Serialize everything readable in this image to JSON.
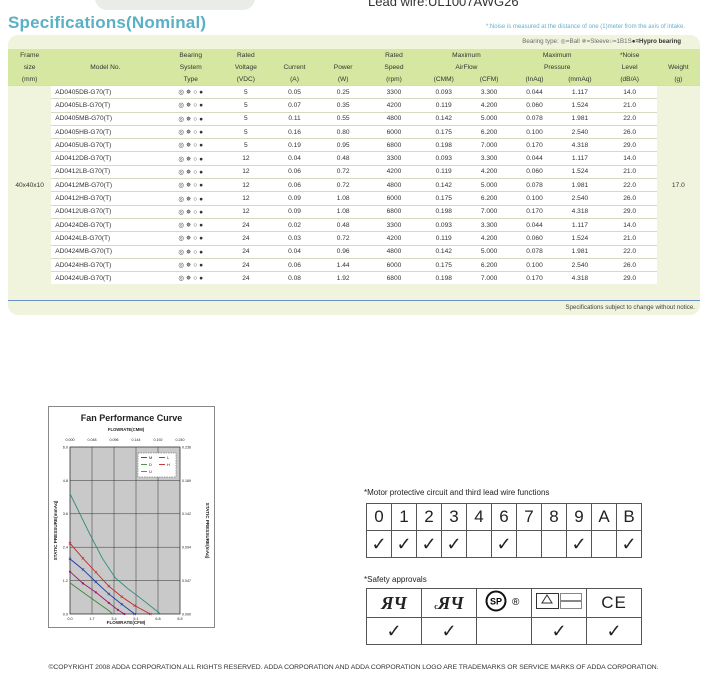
{
  "header": {
    "lead_wire": "Lead wire:UL1007AWG26",
    "title": "Specifications(Nominal)",
    "noise_note": "*:Noise is measured at the distance of one (1)meter from the axis of intake.",
    "bearing_legend_prefix": "Bearing type: ",
    "bearing_legend_body": "◎=Ball ✵=Sleeve○=1B1S",
    "bearing_legend_bold": "●=Hypro bearing"
  },
  "spec_table": {
    "headers_row1": [
      "Frame",
      "",
      "Bearing",
      "Rated",
      "",
      "",
      "Rated",
      "Maximum",
      "Maximum",
      "*Noise",
      ""
    ],
    "headers_row2": [
      "size",
      "Model No.",
      "System",
      "Voltage",
      "Current",
      "Power",
      "Speed",
      "AirFlow",
      "Pressure",
      "Level",
      "Weight"
    ],
    "headers_row3": [
      "(mm)",
      "",
      "Type",
      "(VDC)",
      "(A)",
      "(W)",
      "(rpm)",
      "(CMM)",
      "(CFM)",
      "(InAq)",
      "(mmAq)",
      "(dB/A)",
      "(g)"
    ],
    "frame_size": "40x40x10",
    "weight": "17.0",
    "bearing_symbols": "◎ ✵ ○ ●",
    "rows": [
      {
        "model": "AD0405DB-G70(T)",
        "voltage": "5",
        "current": "0.05",
        "power": "0.25",
        "speed": "3300",
        "cmm": "0.093",
        "cfm": "3.300",
        "inaq": "0.044",
        "mmaq": "1.117",
        "noise": "14.0"
      },
      {
        "model": "AD0405LB-G70(T)",
        "voltage": "5",
        "current": "0.07",
        "power": "0.35",
        "speed": "4200",
        "cmm": "0.119",
        "cfm": "4.200",
        "inaq": "0.060",
        "mmaq": "1.524",
        "noise": "21.0"
      },
      {
        "model": "AD0405MB-G70(T)",
        "voltage": "5",
        "current": "0.11",
        "power": "0.55",
        "speed": "4800",
        "cmm": "0.142",
        "cfm": "5.000",
        "inaq": "0.078",
        "mmaq": "1.981",
        "noise": "22.0"
      },
      {
        "model": "AD0405HB-G70(T)",
        "voltage": "5",
        "current": "0.16",
        "power": "0.80",
        "speed": "6000",
        "cmm": "0.175",
        "cfm": "6.200",
        "inaq": "0.100",
        "mmaq": "2.540",
        "noise": "26.0"
      },
      {
        "model": "AD0405UB-G70(T)",
        "voltage": "5",
        "current": "0.19",
        "power": "0.95",
        "speed": "6800",
        "cmm": "0.198",
        "cfm": "7.000",
        "inaq": "0.170",
        "mmaq": "4.318",
        "noise": "29.0"
      },
      {
        "model": "AD0412DB-G70(T)",
        "voltage": "12",
        "current": "0.04",
        "power": "0.48",
        "speed": "3300",
        "cmm": "0.093",
        "cfm": "3.300",
        "inaq": "0.044",
        "mmaq": "1.117",
        "noise": "14.0"
      },
      {
        "model": "AD0412LB-G70(T)",
        "voltage": "12",
        "current": "0.06",
        "power": "0.72",
        "speed": "4200",
        "cmm": "0.119",
        "cfm": "4.200",
        "inaq": "0.060",
        "mmaq": "1.524",
        "noise": "21.0"
      },
      {
        "model": "AD0412MB-G70(T)",
        "voltage": "12",
        "current": "0.06",
        "power": "0.72",
        "speed": "4800",
        "cmm": "0.142",
        "cfm": "5.000",
        "inaq": "0.078",
        "mmaq": "1.981",
        "noise": "22.0"
      },
      {
        "model": "AD0412HB-G70(T)",
        "voltage": "12",
        "current": "0.09",
        "power": "1.08",
        "speed": "6000",
        "cmm": "0.175",
        "cfm": "6.200",
        "inaq": "0.100",
        "mmaq": "2.540",
        "noise": "26.0"
      },
      {
        "model": "AD0412UB-G70(T)",
        "voltage": "12",
        "current": "0.09",
        "power": "1.08",
        "speed": "6800",
        "cmm": "0.198",
        "cfm": "7.000",
        "inaq": "0.170",
        "mmaq": "4.318",
        "noise": "29.0"
      },
      {
        "model": "AD0424DB-G70(T)",
        "voltage": "24",
        "current": "0.02",
        "power": "0.48",
        "speed": "3300",
        "cmm": "0.093",
        "cfm": "3.300",
        "inaq": "0.044",
        "mmaq": "1.117",
        "noise": "14.0"
      },
      {
        "model": "AD0424LB-G70(T)",
        "voltage": "24",
        "current": "0.03",
        "power": "0.72",
        "speed": "4200",
        "cmm": "0.119",
        "cfm": "4.200",
        "inaq": "0.060",
        "mmaq": "1.524",
        "noise": "21.0"
      },
      {
        "model": "AD0424MB-G70(T)",
        "voltage": "24",
        "current": "0.04",
        "power": "0.96",
        "speed": "4800",
        "cmm": "0.142",
        "cfm": "5.000",
        "inaq": "0.078",
        "mmaq": "1.981",
        "noise": "22.0"
      },
      {
        "model": "AD0424HB-G70(T)",
        "voltage": "24",
        "current": "0.06",
        "power": "1.44",
        "speed": "6000",
        "cmm": "0.175",
        "cfm": "6.200",
        "inaq": "0.100",
        "mmaq": "2.540",
        "noise": "26.0"
      },
      {
        "model": "AD0424UB-G70(T)",
        "voltage": "24",
        "current": "0.08",
        "power": "1.92",
        "speed": "6800",
        "cmm": "0.198",
        "cfm": "7.000",
        "inaq": "0.170",
        "mmaq": "4.318",
        "noise": "29.0"
      }
    ],
    "footnote": "Specifications subject to change without notice."
  },
  "chart_data": {
    "type": "line",
    "title": "Fan Performance Curve",
    "top_axis_label": "FLOWRATE(CMM)",
    "xlabel": "FLOWRATE(CFM)",
    "ylabel_left": "STATIC PRESSURE(mmAq)",
    "ylabel_right": "STATIC PRESSURE(InAq)",
    "x_ticks_cfm": [
      "0.0",
      "1.7",
      "3.4",
      "5.1",
      "6.8",
      "8.5"
    ],
    "x_ticks_cmm": [
      "0.000",
      "0.048",
      "0.096",
      "0.144",
      "0.192",
      "0.240"
    ],
    "y_ticks_mmaq": [
      "0.0",
      "1.2",
      "2.4",
      "3.6",
      "4.8",
      "6.0"
    ],
    "y_ticks_inaq": [
      "0.000",
      "0.047",
      "0.094",
      "0.142",
      "0.189",
      "0.236"
    ],
    "xlim": [
      0,
      8.5
    ],
    "ylim": [
      0,
      6.0
    ],
    "grid": true,
    "legend_position": "top-right",
    "series": [
      {
        "name": "M",
        "color": "#1a3aa8",
        "marker": "x",
        "x": [
          0,
          1.0,
          2.0,
          3.0,
          4.0,
          5.0
        ],
        "y": [
          1.98,
          1.6,
          1.15,
          0.72,
          0.35,
          0
        ]
      },
      {
        "name": "L",
        "color": "#a0186a",
        "marker": "dot",
        "x": [
          0,
          1.0,
          2.0,
          3.0,
          3.7,
          4.2
        ],
        "y": [
          1.52,
          1.1,
          0.78,
          0.4,
          0.15,
          0
        ]
      },
      {
        "name": "D",
        "color": "#3a8a3a",
        "marker": "",
        "x": [
          0,
          1.0,
          2.0,
          3.0,
          3.3
        ],
        "y": [
          1.12,
          0.78,
          0.45,
          0.12,
          0
        ]
      },
      {
        "name": "H",
        "color": "#c0282a",
        "marker": "x",
        "x": [
          0,
          1.0,
          2.0,
          3.0,
          4.0,
          5.0,
          6.2
        ],
        "y": [
          2.54,
          2.0,
          1.5,
          1.0,
          0.62,
          0.3,
          0
        ]
      },
      {
        "name": "U",
        "color": "#2e8a7a",
        "marker": "",
        "x": [
          0,
          0.5,
          1.5,
          2.5,
          3.5,
          4.5,
          5.5,
          7.0
        ],
        "y": [
          4.32,
          3.85,
          2.9,
          2.0,
          1.3,
          0.9,
          0.55,
          0
        ]
      }
    ]
  },
  "motor": {
    "title": "*Motor protective circuit and third lead wire functions",
    "codes": [
      "0",
      "1",
      "2",
      "3",
      "4",
      "6",
      "7",
      "8",
      "9",
      "A",
      "B"
    ],
    "checks": [
      "✓",
      "✓",
      "✓",
      "✓",
      "",
      "✓",
      "",
      "",
      "✓",
      "",
      "✓"
    ]
  },
  "safety": {
    "title": "*Safety approvals",
    "ul": "ЯЧ",
    "cul_prefix": "c",
    "cul": "ЯЧ",
    "csa": "SP",
    "reg": "®",
    "ce": "CE",
    "checks": [
      "✓",
      "✓",
      "",
      "✓",
      "✓"
    ]
  },
  "footer": {
    "copyright": "©COPYRIGHT 2008 ADDA CORPORATION.ALL RIGHTS RESERVED. ADDA CORPORATION AND ADDA  CORPORATION LOGO ARE TRADEMARKS OR SERVICE MARKS OF ADDA CORPORATION."
  },
  "colors": {
    "title": "#5ab0c5",
    "panel": "#f1f4dc",
    "header_band": "#d6e7a2",
    "rule": "#6b8fc8"
  }
}
